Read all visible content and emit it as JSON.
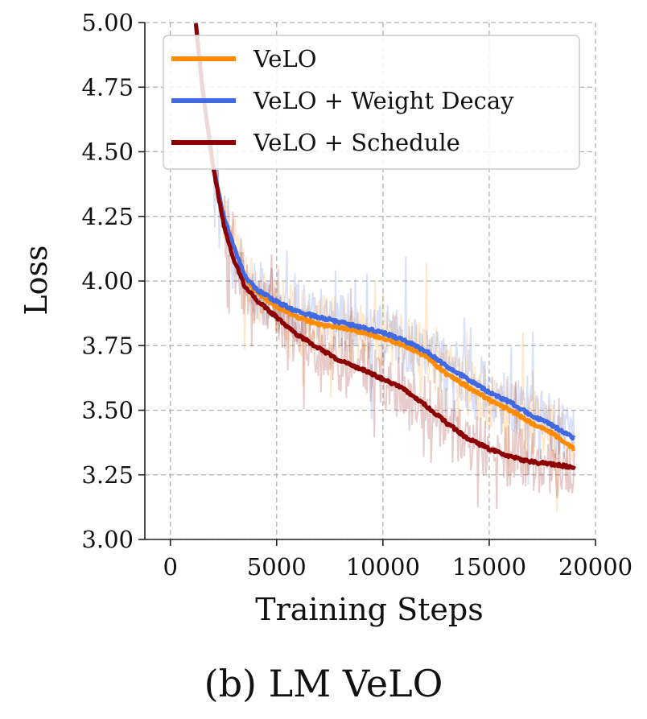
{
  "caption": "(b) LM VeLO",
  "chart_data": {
    "type": "line",
    "xlabel": "Training Steps",
    "ylabel": "Loss",
    "xlim": [
      -1200,
      20000
    ],
    "ylim": [
      3.0,
      5.0
    ],
    "x_ticks": [
      "0",
      "5000",
      "10000",
      "15000",
      "20000"
    ],
    "y_ticks": [
      "3.00",
      "3.25",
      "3.50",
      "3.75",
      "4.00",
      "4.25",
      "4.50",
      "4.75",
      "5.00"
    ],
    "grid": true,
    "legend_position": "top-right",
    "x": [
      1200,
      1500,
      2000,
      2500,
      3000,
      3500,
      4000,
      5000,
      6000,
      7000,
      8000,
      9000,
      10000,
      11000,
      12000,
      13000,
      14000,
      15000,
      16000,
      17000,
      18000,
      19000
    ],
    "series": [
      {
        "name": "VeLO",
        "color": "#ff8c00",
        "values": [
          5.0,
          4.75,
          4.45,
          4.25,
          4.13,
          4.02,
          3.96,
          3.9,
          3.86,
          3.83,
          3.82,
          3.8,
          3.78,
          3.75,
          3.71,
          3.64,
          3.59,
          3.54,
          3.5,
          3.45,
          3.41,
          3.35
        ]
      },
      {
        "name": "VeLO + Weight Decay",
        "color": "#4169e1",
        "values": [
          5.0,
          4.75,
          4.45,
          4.25,
          4.13,
          4.02,
          3.97,
          3.92,
          3.88,
          3.86,
          3.84,
          3.82,
          3.8,
          3.77,
          3.73,
          3.67,
          3.62,
          3.57,
          3.53,
          3.48,
          3.44,
          3.39
        ]
      },
      {
        "name": "VeLO + Schedule",
        "color": "#8b0000",
        "values": [
          5.0,
          4.75,
          4.45,
          4.22,
          4.08,
          3.98,
          3.93,
          3.86,
          3.79,
          3.74,
          3.69,
          3.66,
          3.62,
          3.58,
          3.52,
          3.45,
          3.39,
          3.35,
          3.32,
          3.3,
          3.29,
          3.28
        ]
      }
    ]
  }
}
